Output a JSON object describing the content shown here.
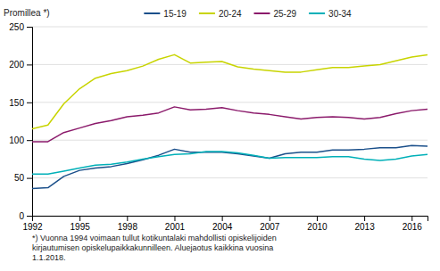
{
  "chart_data": {
    "type": "line",
    "ylabel": "Promillea *)",
    "footnote": "*) Vuonna 1994 voimaan tullut kotikuntalaki mahdollisti opiskelijoiden\nkirjautumisen opiskelupaikkakunnilleen. Aluejaotus kaikkina vuosina\n1.1.2018.",
    "x": [
      1992,
      1993,
      1994,
      1995,
      1996,
      1997,
      1998,
      1999,
      2000,
      2001,
      2002,
      2003,
      2004,
      2005,
      2006,
      2007,
      2008,
      2009,
      2010,
      2011,
      2012,
      2013,
      2014,
      2015,
      2016,
      2017
    ],
    "series": [
      {
        "name": "15-19",
        "color": "#1a4f8a",
        "values": [
          36,
          37,
          52,
          60,
          63,
          65,
          69,
          74,
          80,
          88,
          84,
          84,
          84,
          82,
          79,
          76,
          82,
          84,
          84,
          87,
          87,
          88,
          90,
          90,
          93,
          92
        ]
      },
      {
        "name": "20-24",
        "color": "#c8d400",
        "values": [
          115,
          120,
          148,
          168,
          182,
          188,
          192,
          198,
          207,
          213,
          202,
          203,
          204,
          197,
          194,
          192,
          190,
          190,
          193,
          196,
          196,
          198,
          200,
          205,
          210,
          213
        ]
      },
      {
        "name": "25-29",
        "color": "#8b1a6b",
        "values": [
          98,
          98,
          110,
          116,
          122,
          126,
          131,
          133,
          136,
          144,
          140,
          141,
          143,
          139,
          136,
          134,
          131,
          128,
          130,
          131,
          130,
          128,
          130,
          135,
          139,
          141
        ]
      },
      {
        "name": "30-34",
        "color": "#00b0b8",
        "values": [
          55,
          55,
          59,
          63,
          67,
          68,
          71,
          75,
          78,
          81,
          82,
          85,
          85,
          83,
          80,
          76,
          77,
          77,
          77,
          78,
          78,
          75,
          73,
          75,
          79,
          81
        ]
      }
    ],
    "xlim": [
      1992,
      2017
    ],
    "xticks": [
      1992,
      1995,
      1998,
      2001,
      2004,
      2007,
      2010,
      2013,
      2016
    ],
    "ylim": [
      0,
      250
    ],
    "yticks": [
      0,
      50,
      100,
      150,
      200,
      250
    ],
    "grid": "y",
    "legend": "top"
  }
}
